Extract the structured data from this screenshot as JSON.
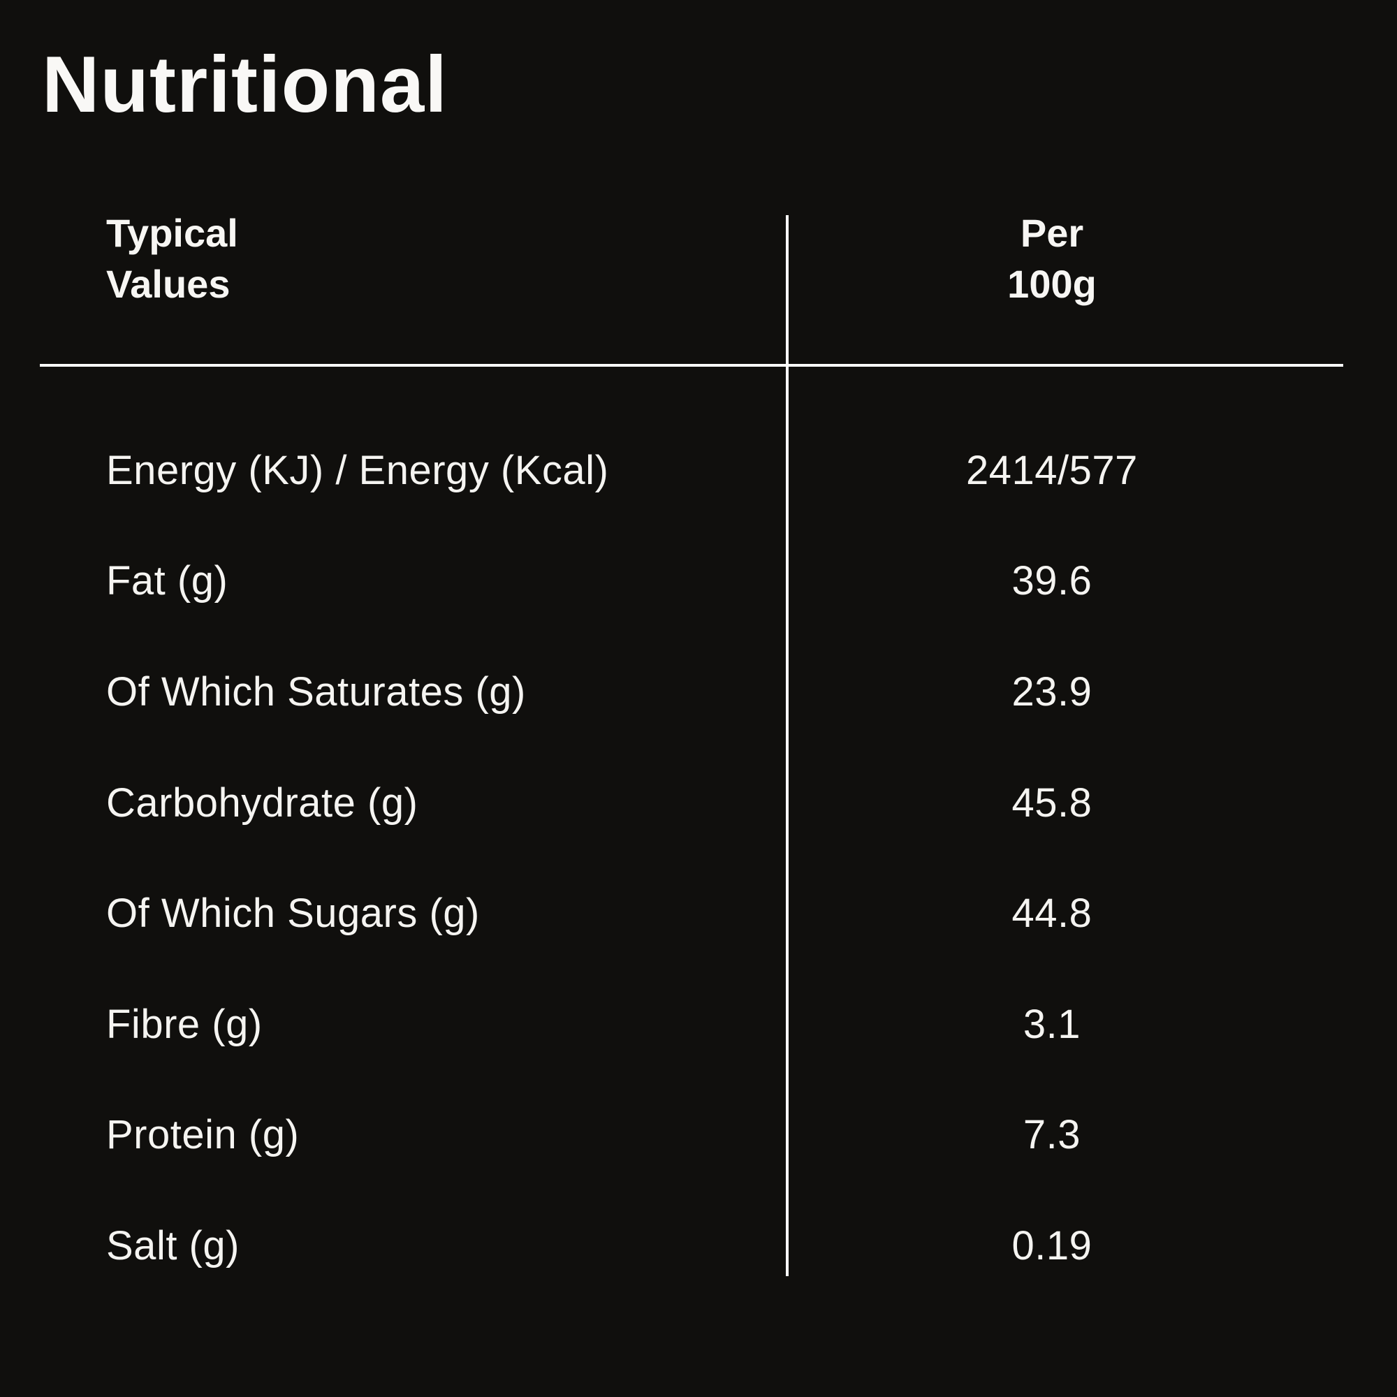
{
  "title": "Nutritional",
  "table": {
    "col1_header": [
      "Typical",
      "Values"
    ],
    "col2_header": [
      "Per",
      "100g"
    ],
    "rows": [
      {
        "label": "Energy (KJ) / Energy (Kcal)",
        "value": "2414/577"
      },
      {
        "label": "Fat (g)",
        "value": "39.6"
      },
      {
        "label": "Of Which Saturates (g)",
        "value": "23.9"
      },
      {
        "label": "Carbohydrate (g)",
        "value": "45.8"
      },
      {
        "label": "Of Which Sugars (g)",
        "value": "44.8"
      },
      {
        "label": "Fibre (g)",
        "value": "3.1"
      },
      {
        "label": "Protein (g)",
        "value": "7.3"
      },
      {
        "label": "Salt (g)",
        "value": "0.19"
      }
    ]
  },
  "colors": {
    "background": "#100f0d",
    "text": "#f5f4f1",
    "divider": "#fcfcfb"
  }
}
